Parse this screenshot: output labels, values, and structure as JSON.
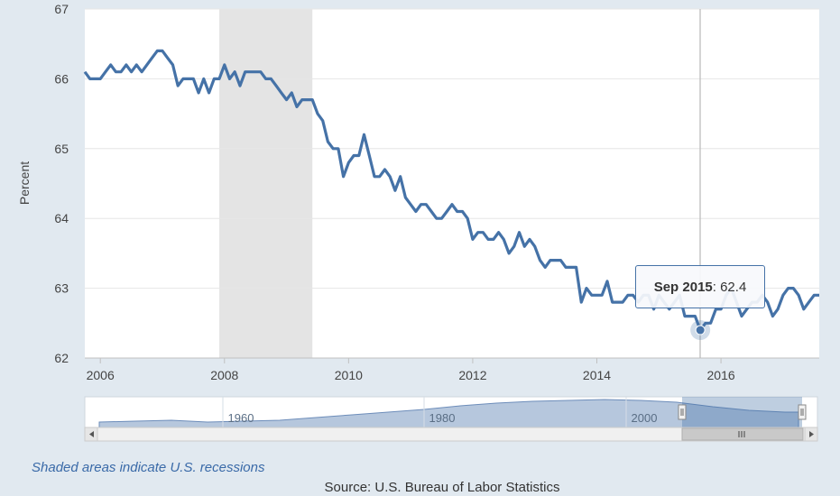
{
  "chart_data": {
    "type": "line",
    "title": "",
    "ylabel": "Percent",
    "xlabel": "",
    "ylim": [
      62,
      67
    ],
    "yticks": [
      "62",
      "63",
      "64",
      "65",
      "66",
      "67"
    ],
    "xticks": [
      "2006",
      "2008",
      "2010",
      "2012",
      "2014",
      "2016"
    ],
    "xrange": [
      "2005-10",
      "2017-08"
    ],
    "grid": true,
    "line_color": "#4572a7",
    "recession_color": "#e4e4e4",
    "recessions": [
      {
        "start": "2007-12",
        "end": "2009-06"
      }
    ],
    "series": [
      {
        "x": [
          "2005-10",
          "2005-11",
          "2005-12",
          "2006-01",
          "2006-02",
          "2006-03",
          "2006-04",
          "2006-05",
          "2006-06",
          "2006-07",
          "2006-08",
          "2006-09",
          "2006-10",
          "2006-11",
          "2006-12",
          "2007-01",
          "2007-02",
          "2007-03",
          "2007-04",
          "2007-05",
          "2007-06",
          "2007-07",
          "2007-08",
          "2007-09",
          "2007-10",
          "2007-11",
          "2007-12",
          "2008-01",
          "2008-02",
          "2008-03",
          "2008-04",
          "2008-05",
          "2008-06",
          "2008-07",
          "2008-08",
          "2008-09",
          "2008-10",
          "2008-11",
          "2008-12",
          "2009-01",
          "2009-02",
          "2009-03",
          "2009-04",
          "2009-05",
          "2009-06",
          "2009-07",
          "2009-08",
          "2009-09",
          "2009-10",
          "2009-11",
          "2009-12",
          "2010-01",
          "2010-02",
          "2010-03",
          "2010-04",
          "2010-05",
          "2010-06",
          "2010-07",
          "2010-08",
          "2010-09",
          "2010-10",
          "2010-11",
          "2010-12",
          "2011-01",
          "2011-02",
          "2011-03",
          "2011-04",
          "2011-05",
          "2011-06",
          "2011-07",
          "2011-08",
          "2011-09",
          "2011-10",
          "2011-11",
          "2011-12",
          "2012-01",
          "2012-02",
          "2012-03",
          "2012-04",
          "2012-05",
          "2012-06",
          "2012-07",
          "2012-08",
          "2012-09",
          "2012-10",
          "2012-11",
          "2012-12",
          "2013-01",
          "2013-02",
          "2013-03",
          "2013-04",
          "2013-05",
          "2013-06",
          "2013-07",
          "2013-08",
          "2013-09",
          "2013-10",
          "2013-11",
          "2013-12",
          "2014-01",
          "2014-02",
          "2014-03",
          "2014-04",
          "2014-05",
          "2014-06",
          "2014-07",
          "2014-08",
          "2014-09",
          "2014-10",
          "2014-11",
          "2014-12",
          "2015-01",
          "2015-02",
          "2015-03",
          "2015-04",
          "2015-05",
          "2015-06",
          "2015-07",
          "2015-08",
          "2015-09",
          "2015-10",
          "2015-11",
          "2015-12",
          "2016-01",
          "2016-02",
          "2016-03",
          "2016-04",
          "2016-05",
          "2016-06",
          "2016-07",
          "2016-08",
          "2016-09",
          "2016-10",
          "2016-11",
          "2016-12",
          "2017-01",
          "2017-02",
          "2017-03",
          "2017-04",
          "2017-05",
          "2017-06",
          "2017-07",
          "2017-08"
        ],
        "values": [
          66.1,
          66.0,
          66.0,
          66.0,
          66.1,
          66.2,
          66.1,
          66.1,
          66.2,
          66.1,
          66.2,
          66.1,
          66.2,
          66.3,
          66.4,
          66.4,
          66.3,
          66.2,
          65.9,
          66.0,
          66.0,
          66.0,
          65.8,
          66.0,
          65.8,
          66.0,
          66.0,
          66.2,
          66.0,
          66.1,
          65.9,
          66.1,
          66.1,
          66.1,
          66.1,
          66.0,
          66.0,
          65.9,
          65.8,
          65.7,
          65.8,
          65.6,
          65.7,
          65.7,
          65.7,
          65.5,
          65.4,
          65.1,
          65.0,
          65.0,
          64.6,
          64.8,
          64.9,
          64.9,
          65.2,
          64.9,
          64.6,
          64.6,
          64.7,
          64.6,
          64.4,
          64.6,
          64.3,
          64.2,
          64.1,
          64.2,
          64.2,
          64.1,
          64.0,
          64.0,
          64.1,
          64.2,
          64.1,
          64.1,
          64.0,
          63.7,
          63.8,
          63.8,
          63.7,
          63.7,
          63.8,
          63.7,
          63.5,
          63.6,
          63.8,
          63.6,
          63.7,
          63.6,
          63.4,
          63.3,
          63.4,
          63.4,
          63.4,
          63.3,
          63.3,
          63.3,
          62.8,
          63.0,
          62.9,
          62.9,
          62.9,
          63.1,
          62.8,
          62.8,
          62.8,
          62.9,
          62.9,
          62.8,
          62.9,
          62.9,
          62.7,
          62.9,
          62.8,
          62.7,
          62.8,
          62.9,
          62.6,
          62.6,
          62.6,
          62.4,
          62.5,
          62.5,
          62.7,
          62.7,
          62.9,
          63.0,
          62.8,
          62.6,
          62.7,
          62.8,
          62.8,
          62.9,
          62.8,
          62.6,
          62.7,
          62.9,
          63.0,
          63.0,
          62.9,
          62.7,
          62.8,
          62.9,
          62.9
        ]
      }
    ],
    "tooltip": {
      "date_label": "Sep 2015",
      "value_label": "62.4",
      "separator": ": "
    }
  },
  "navigator": {
    "ticks": [
      "1960",
      "1980",
      "2000"
    ]
  },
  "footer": {
    "note": "Shaded areas indicate U.S. recessions",
    "source": "Source: U.S. Bureau of Labor Statistics"
  },
  "icons": {
    "scroll_left": "arrow-left-icon",
    "scroll_right": "arrow-right-icon",
    "scroll_grip": "grip-icon"
  }
}
